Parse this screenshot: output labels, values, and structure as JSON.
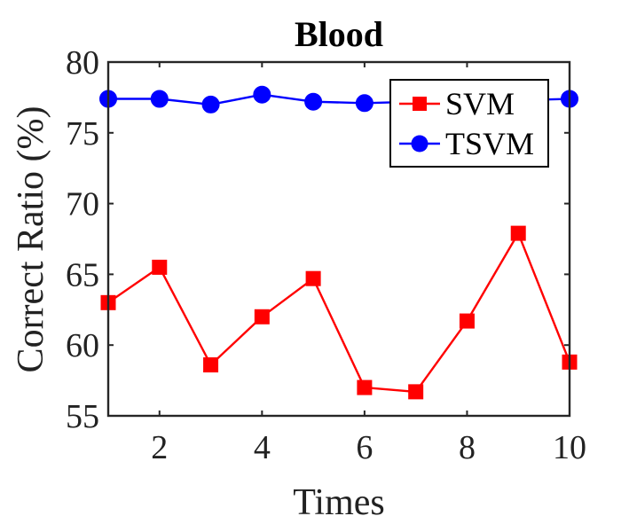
{
  "chart_data": {
    "type": "line",
    "title": "Blood",
    "xlabel": "Times",
    "ylabel": "Correct Ratio (%)",
    "x": [
      1,
      2,
      3,
      4,
      5,
      6,
      7,
      8,
      9,
      10
    ],
    "xlim": [
      1,
      10
    ],
    "ylim": [
      55,
      80
    ],
    "xticks": [
      2,
      4,
      6,
      8,
      10
    ],
    "yticks": [
      55,
      60,
      65,
      70,
      75,
      80
    ],
    "grid": false,
    "legend_position": "top-right",
    "series": [
      {
        "name": "SVM",
        "color": "#ff0000",
        "marker": "square",
        "values": [
          63.0,
          65.5,
          58.6,
          62.0,
          64.7,
          57.0,
          56.7,
          61.7,
          67.9,
          58.8
        ]
      },
      {
        "name": "TSVM",
        "color": "#0000ff",
        "marker": "circle",
        "values": [
          77.4,
          77.4,
          77.0,
          77.7,
          77.2,
          77.1,
          77.2,
          77.3,
          77.3,
          77.4
        ]
      }
    ]
  }
}
